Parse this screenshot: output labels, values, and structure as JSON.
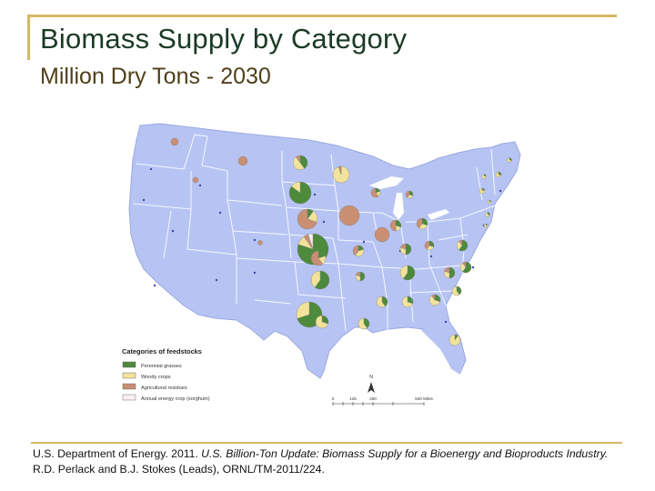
{
  "title": "Biomass Supply by Category",
  "subtitle": "Million Dry Tons - 2030",
  "legend": {
    "title": "Categories of feedstocks",
    "items": [
      {
        "label": "Perennial grasses",
        "color": "#4d8a3c"
      },
      {
        "label": "Woody crops",
        "color": "#f1e39a"
      },
      {
        "label": "Agricultural residues",
        "color": "#c98f73"
      },
      {
        "label": "Annual energy crop (sorghum)",
        "color": "#f8eef4"
      }
    ]
  },
  "scale": {
    "ticks": [
      "0",
      "125",
      "250",
      "500 Miles"
    ],
    "north_label": "N"
  },
  "citation": {
    "line1_plain": "U.S. Department of Energy. 2011. ",
    "line1_italic": "U.S. Billion-Ton Update: Biomass Supply for a Bioenergy and Bioproducts Industry.",
    "line2_plain": " R.D. Perlack and B.J. Stokes (Leads), ORNL/TM-2011/224."
  },
  "colors": {
    "land": "#b7c4f3",
    "state_border": "#f4f6ff",
    "rule": "#d7b766"
  }
}
